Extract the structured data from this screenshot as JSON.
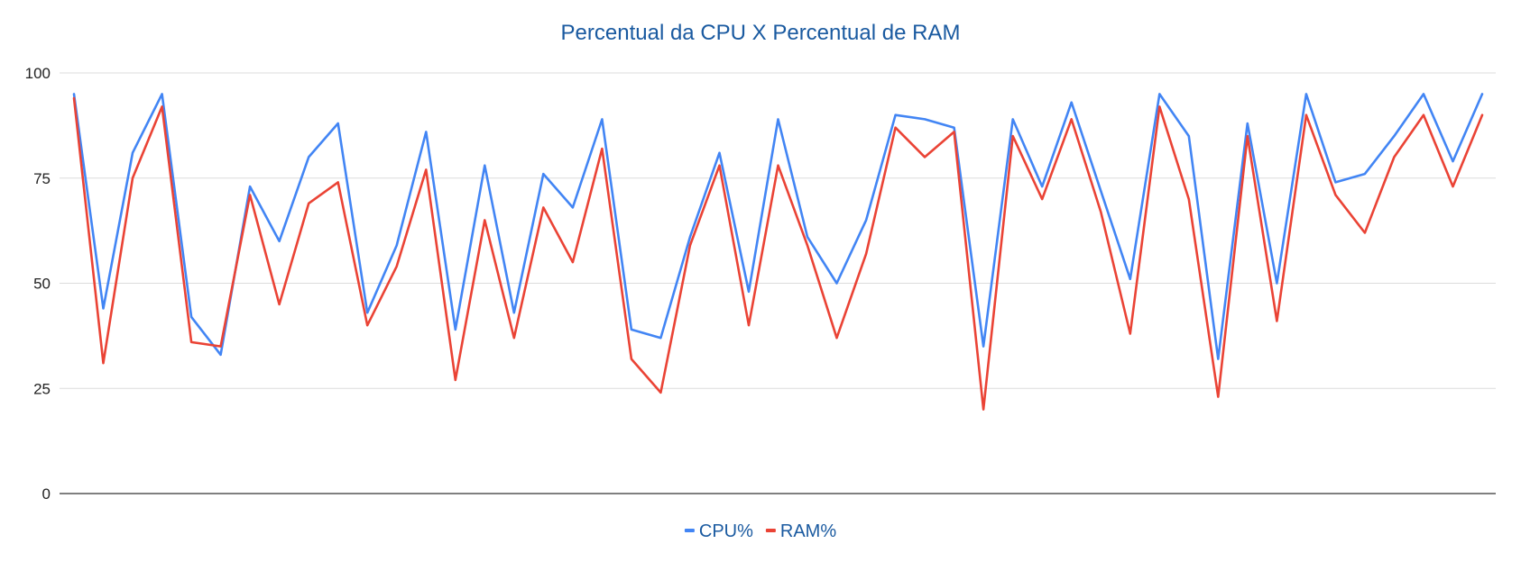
{
  "chart_data": {
    "type": "line",
    "title": "Percentual da CPU X Percentual de RAM",
    "xlabel": "",
    "ylabel": "",
    "ylim": [
      0,
      100
    ],
    "yticks": [
      0,
      25,
      50,
      75,
      100
    ],
    "grid": true,
    "legend_position": "bottom",
    "series": [
      {
        "name": "CPU%",
        "color": "#4285f4",
        "values": [
          95,
          44,
          81,
          95,
          42,
          33,
          73,
          60,
          80,
          88,
          43,
          59,
          86,
          39,
          78,
          43,
          76,
          68,
          89,
          39,
          37,
          61,
          81,
          48,
          89,
          61,
          50,
          65,
          90,
          89,
          87,
          35,
          89,
          73,
          93,
          72,
          51,
          95,
          85,
          32,
          88,
          50,
          95,
          74,
          76,
          85,
          95,
          79,
          95
        ]
      },
      {
        "name": "RAM%",
        "color": "#ea4335",
        "values": [
          94,
          31,
          75,
          92,
          36,
          35,
          71,
          45,
          69,
          74,
          40,
          54,
          77,
          27,
          65,
          37,
          68,
          55,
          82,
          32,
          24,
          59,
          78,
          40,
          78,
          59,
          37,
          57,
          87,
          80,
          86,
          20,
          85,
          70,
          89,
          67,
          38,
          92,
          70,
          23,
          85,
          41,
          90,
          71,
          62,
          80,
          90,
          73,
          90
        ]
      }
    ]
  }
}
